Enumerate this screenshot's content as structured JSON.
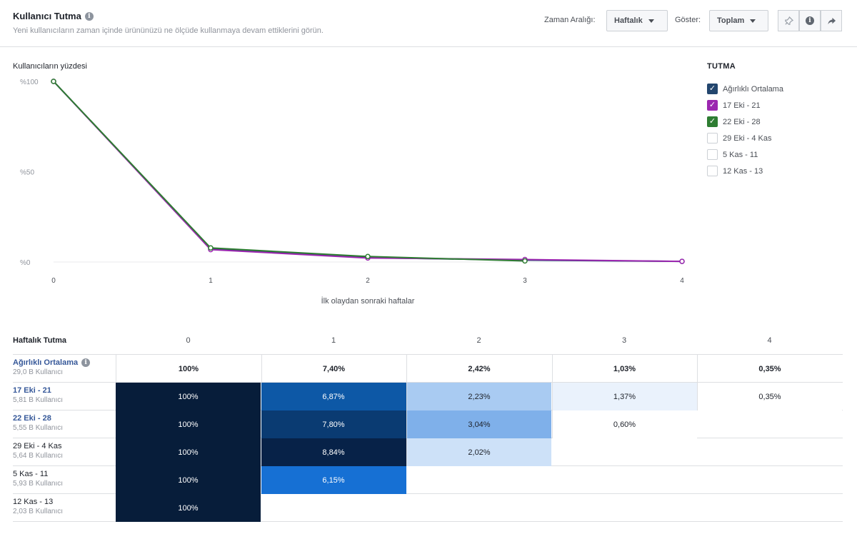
{
  "header": {
    "title": "Kullanıcı Tutma",
    "subtitle": "Yeni kullanıcıların zaman içinde ürününüzü ne ölçüde kullanmaya devam ettiklerini görün.",
    "time_range_label": "Zaman Aralığı:",
    "time_range_value": "Haftalık",
    "show_label": "Göster:",
    "show_value": "Toplam"
  },
  "chart_data": {
    "type": "line",
    "ylabel": "Kullanıcıların yüzdesi",
    "xlabel": "İlk olaydan sonraki haftalar",
    "x": [
      0,
      1,
      2,
      3,
      4
    ],
    "xticks": [
      "0",
      "1",
      "2",
      "3",
      "4"
    ],
    "yticks": [
      "%100",
      "%50",
      "%0"
    ],
    "ylim": [
      0,
      100
    ],
    "grid": false,
    "series": [
      {
        "name": "Ağırlıklı Ortalama",
        "color": "#23466e",
        "values": [
          100,
          7.4,
          2.42,
          1.03,
          0.35
        ]
      },
      {
        "name": "17 Eki - 21",
        "color": "#9c27b0",
        "values": [
          100,
          6.87,
          2.23,
          1.37,
          0.35
        ]
      },
      {
        "name": "22 Eki - 28",
        "color": "#2e7d32",
        "values": [
          100,
          7.8,
          3.04,
          0.6,
          null
        ]
      }
    ]
  },
  "legend": {
    "title": "TUTMA",
    "items": [
      {
        "label": "Ağırlıklı Ortalama",
        "checked": true,
        "color": "#23466e"
      },
      {
        "label": "17 Eki - 21",
        "checked": true,
        "color": "#9c27b0"
      },
      {
        "label": "22 Eki - 28",
        "checked": true,
        "color": "#2e7d32"
      },
      {
        "label": "29 Eki - 4 Kas",
        "checked": false,
        "color": "#ffffff"
      },
      {
        "label": "5 Kas - 11",
        "checked": false,
        "color": "#ffffff"
      },
      {
        "label": "12 Kas - 13",
        "checked": false,
        "color": "#ffffff"
      }
    ]
  },
  "table": {
    "title": "Haftalık Tutma",
    "columns": [
      "0",
      "1",
      "2",
      "3",
      "4"
    ],
    "rows": [
      {
        "name": "Ağırlıklı Ortalama",
        "users": "29,0 B Kullanıcı",
        "link": true,
        "info": true,
        "cells": [
          "100%",
          "7,40%",
          "2,42%",
          "1,03%",
          "0,35%"
        ],
        "shades": [
          "",
          "",
          "",
          "",
          ""
        ]
      },
      {
        "name": "17 Eki - 21",
        "users": "5,81 B Kullanıcı",
        "link": true,
        "info": false,
        "cells": [
          "100%",
          "6,87%",
          "2,23%",
          "1,37%",
          "0,35%"
        ],
        "shades": [
          "#071d3a",
          "#0d58a6",
          "#a9cbf2",
          "#eaf2fc",
          "#ffffff"
        ]
      },
      {
        "name": "22 Eki - 28",
        "users": "5,55 B Kullanıcı",
        "link": true,
        "info": false,
        "cells": [
          "100%",
          "7,80%",
          "3,04%",
          "0,60%",
          ""
        ],
        "shades": [
          "#071d3a",
          "#0a3b72",
          "#7fb0ea",
          "#ffffff",
          ""
        ]
      },
      {
        "name": "29 Eki - 4 Kas",
        "users": "5,64 B Kullanıcı",
        "link": false,
        "info": false,
        "cells": [
          "100%",
          "8,84%",
          "2,02%",
          "",
          ""
        ],
        "shades": [
          "#071d3a",
          "#072248",
          "#cde1f8",
          "",
          ""
        ]
      },
      {
        "name": "5 Kas - 11",
        "users": "5,93 B Kullanıcı",
        "link": false,
        "info": false,
        "cells": [
          "100%",
          "6,15%",
          "",
          "",
          ""
        ],
        "shades": [
          "#071d3a",
          "#1670d4",
          "",
          "",
          ""
        ]
      },
      {
        "name": "12 Kas - 13",
        "users": "2,03 B Kullanıcı",
        "link": false,
        "info": false,
        "cells": [
          "100%",
          "",
          "",
          "",
          ""
        ],
        "shades": [
          "#071d3a",
          "",
          "",
          "",
          ""
        ]
      }
    ]
  }
}
